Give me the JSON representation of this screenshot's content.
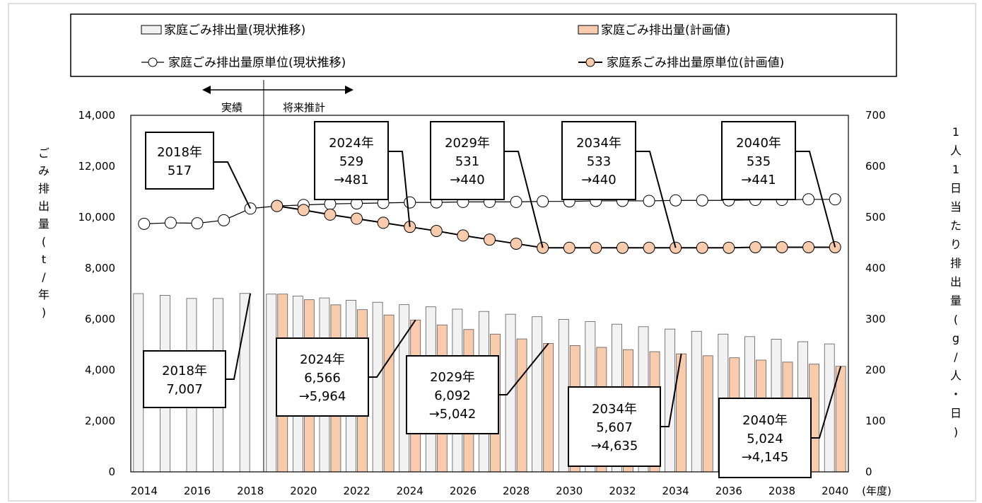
{
  "chart_data": {
    "type": "bar",
    "x": [
      2014,
      2015,
      2016,
      2017,
      2018,
      2019,
      2020,
      2021,
      2022,
      2023,
      2024,
      2025,
      2026,
      2027,
      2028,
      2029,
      2030,
      2031,
      2032,
      2033,
      2034,
      2035,
      2036,
      2037,
      2038,
      2039,
      2040
    ],
    "x_tick_labels": [
      "2014",
      "2016",
      "2018",
      "2020",
      "2022",
      "2024",
      "2026",
      "2028",
      "2030",
      "2032",
      "2034",
      "2036",
      "2038",
      "2040"
    ],
    "x_unit_label": "(年度)",
    "y_left_label": "ごみ排出量(t/年)",
    "y_left_ticks": [
      "0",
      "2,000",
      "4,000",
      "6,000",
      "8,000",
      "10,000",
      "12,000",
      "14,000"
    ],
    "y_left_lim": [
      0,
      14000
    ],
    "y_right_label": "1人1日当たり排出量(g/人・日)",
    "y_right_ticks": [
      "0",
      "100",
      "200",
      "300",
      "400",
      "500",
      "600",
      "700"
    ],
    "y_right_lim": [
      0,
      700
    ],
    "series": [
      {
        "name": "家庭ごみ排出量(現状推移)",
        "kind": "bar",
        "axis": "left",
        "color": "#f2f2f2",
        "values": [
          7000,
          6930,
          6810,
          6810,
          7007,
          6980,
          6900,
          6830,
          6740,
          6660,
          6566,
          6480,
          6390,
          6300,
          6190,
          6092,
          5990,
          5900,
          5800,
          5700,
          5607,
          5520,
          5410,
          5310,
          5210,
          5110,
          5024
        ]
      },
      {
        "name": "家庭ごみ排出量(計画値)",
        "kind": "bar",
        "axis": "left",
        "color": "#f8cbad",
        "values": [
          null,
          null,
          null,
          null,
          null,
          6980,
          6760,
          6560,
          6370,
          6160,
          5964,
          5770,
          5590,
          5410,
          5220,
          5042,
          4960,
          4890,
          4800,
          4720,
          4635,
          4560,
          4480,
          4390,
          4310,
          4230,
          4145
        ]
      },
      {
        "name": "家庭ごみ排出量原単位(現状推移)",
        "kind": "line",
        "axis": "right",
        "color": "#ffffff",
        "values": [
          487,
          489,
          488,
          494,
          517,
          522,
          524,
          526,
          527,
          528,
          529,
          529,
          530,
          530,
          530,
          531,
          531,
          532,
          532,
          532,
          533,
          533,
          533,
          534,
          534,
          535,
          535
        ]
      },
      {
        "name": "家庭系ごみ排出量原単位(計画値)",
        "kind": "line",
        "axis": "right",
        "color": "#f8cbad",
        "values": [
          null,
          null,
          null,
          null,
          null,
          522,
          514,
          505,
          497,
          489,
          481,
          473,
          464,
          456,
          448,
          440,
          440,
          440,
          440,
          440,
          440,
          440,
          440,
          441,
          441,
          441,
          441
        ]
      }
    ],
    "period_labels": {
      "actual": "実績",
      "forecast": "将来推計"
    },
    "annotations_top": [
      {
        "id": "ann-top-2018",
        "year": "2018年",
        "lines": [
          "517"
        ]
      },
      {
        "id": "ann-top-2024",
        "year": "2024年",
        "lines": [
          "529",
          "→481"
        ]
      },
      {
        "id": "ann-top-2029",
        "year": "2029年",
        "lines": [
          "531",
          "→440"
        ]
      },
      {
        "id": "ann-top-2034",
        "year": "2034年",
        "lines": [
          "533",
          "→440"
        ]
      },
      {
        "id": "ann-top-2040",
        "year": "2040年",
        "lines": [
          "535",
          "→441"
        ]
      }
    ],
    "annotations_bottom": [
      {
        "id": "ann-bot-2018",
        "year": "2018年",
        "lines": [
          "7,007"
        ]
      },
      {
        "id": "ann-bot-2024",
        "year": "2024年",
        "lines": [
          "6,566",
          "→5,964"
        ]
      },
      {
        "id": "ann-bot-2029",
        "year": "2029年",
        "lines": [
          "6,092",
          "→5,042"
        ]
      },
      {
        "id": "ann-bot-2034",
        "year": "2034年",
        "lines": [
          "5,607",
          "→4,635"
        ]
      },
      {
        "id": "ann-bot-2040",
        "year": "2040年",
        "lines": [
          "5,024",
          "→4,145"
        ]
      }
    ]
  }
}
